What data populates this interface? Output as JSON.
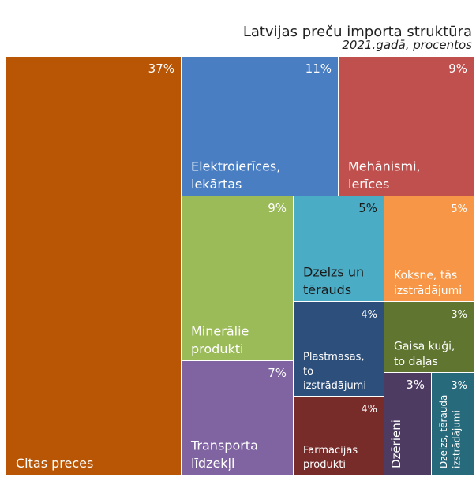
{
  "chart_data": {
    "type": "treemap",
    "title": "Latvijas preču importa struktūra",
    "subtitle": "2021.gadā, procentos",
    "categories": [
      "Citas preces",
      "Elektroierīces, iekārtas",
      "Mehānismi, ierīces",
      "Minerālie produkti",
      "Dzelzs un tērauds",
      "Koksne, tās izstrādājumi",
      "Transporta līdzekļi",
      "Plastmasas, to izstrādājumi",
      "Gaisa kuģi, to daļas",
      "Farmācijas produkti",
      "Dzērieni",
      "Dzelzs, tērauda izstrādājumi"
    ],
    "values": [
      37,
      11,
      9,
      9,
      5,
      5,
      7,
      4,
      3,
      4,
      3,
      3
    ],
    "value_labels": [
      "37%",
      "11%",
      "9%",
      "9%",
      "5%",
      "5%",
      "7%",
      "4%",
      "3%",
      "4%",
      "3%",
      "3%"
    ],
    "colors": [
      "#b85605",
      "#4a7ec2",
      "#c0504d",
      "#9bbb59",
      "#4bacc6",
      "#f79646",
      "#8064a2",
      "#2d4f7c",
      "#5f7530",
      "#772c2a",
      "#4d3b62",
      "#276a7c"
    ]
  }
}
